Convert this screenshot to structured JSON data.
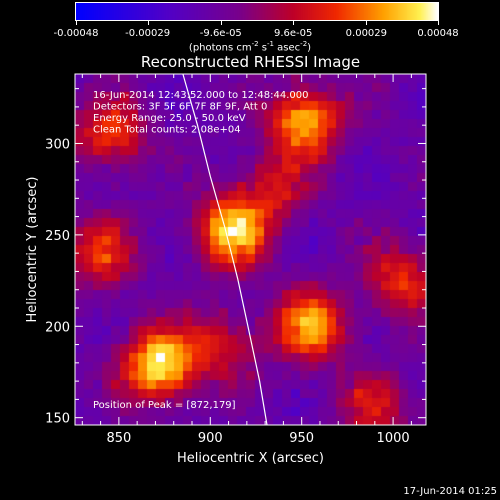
{
  "colorbar": {
    "tick_labels": [
      "-0.00048",
      "-0.00029",
      "-9.6e-05",
      "9.6e-05",
      "0.00029",
      "0.00048"
    ],
    "tick_values": [
      -0.00048,
      -0.00029,
      -9.6e-05,
      9.6e-05,
      0.00029,
      0.00048
    ],
    "units_prefix": "(photons cm",
    "units_exp1": "-2",
    "units_mid": " s",
    "units_exp2": "-1",
    "units_mid2": " asec",
    "units_exp3": "-2",
    "units_suffix": ")",
    "range": [
      -0.00048,
      0.00048
    ]
  },
  "chart_data": {
    "type": "heatmap",
    "title": "Reconstructed RHESSI Image",
    "xlabel": "Heliocentric X (arcsec)",
    "ylabel": "Heliocentric Y (arcsec)",
    "xlim": [
      826,
      1018
    ],
    "ylim": [
      146,
      338
    ],
    "xticks": [
      850,
      900,
      950,
      1000
    ],
    "yticks": [
      150,
      200,
      250,
      300
    ],
    "annotations": [
      "16-Jun-2014 12:43:52.000 to 12:48:44.000",
      "Detectors: 3F 5F 6F 7F 8F 9F, Att 0",
      "Energy Range: 25.0 - 50.0 keV",
      "Clean     Total counts: 2.08e+04"
    ],
    "peak_label": "Position of Peak = [872,179]",
    "peak": [
      872,
      179
    ],
    "sources": [
      {
        "x": 872,
        "y": 179,
        "amp": 1.0
      },
      {
        "x": 912,
        "y": 252,
        "amp": 0.9
      },
      {
        "x": 952,
        "y": 312,
        "amp": 0.85
      },
      {
        "x": 955,
        "y": 200,
        "amp": 0.8
      },
      {
        "x": 845,
        "y": 305,
        "amp": 0.6
      },
      {
        "x": 840,
        "y": 240,
        "amp": 0.55
      },
      {
        "x": 1005,
        "y": 225,
        "amp": 0.55
      },
      {
        "x": 990,
        "y": 155,
        "amp": 0.45
      },
      {
        "x": 905,
        "y": 190,
        "amp": 0.45
      },
      {
        "x": 935,
        "y": 275,
        "amp": 0.4
      }
    ],
    "limb_curve": {
      "x": [
        885,
        893,
        900,
        908,
        915,
        921,
        927,
        931
      ],
      "y": [
        338,
        310,
        282,
        254,
        226,
        198,
        170,
        146
      ]
    },
    "colormap": "blue-purple-red-yellow-white"
  },
  "timestamp": "17-Jun-2014 01:25"
}
